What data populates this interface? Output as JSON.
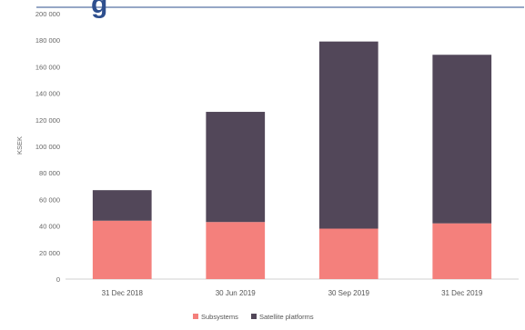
{
  "chart_data": {
    "type": "bar",
    "stacked": true,
    "categories": [
      "31 Dec 2018",
      "30 Jun 2019",
      "30 Sep 2019",
      "31 Dec 2019"
    ],
    "series": [
      {
        "name": "Subsystems",
        "values": [
          44000,
          43000,
          38000,
          42000
        ],
        "color": "#f4807c"
      },
      {
        "name": "Satellite platforms",
        "values": [
          23000,
          83000,
          141000,
          127000
        ],
        "color": "#524759"
      }
    ],
    "ylabel": "KSEK",
    "xlabel": "",
    "ylim": [
      0,
      200000
    ],
    "yticks": [
      "0",
      "20 000",
      "40 000",
      "60 000",
      "80 000",
      "100 000",
      "120 000",
      "140 000",
      "160 000",
      "180 000",
      "200 000"
    ],
    "grid": false,
    "legend": "bottom-center"
  },
  "header_fragment": {
    "text": "g",
    "color": "#2e4f8e"
  }
}
